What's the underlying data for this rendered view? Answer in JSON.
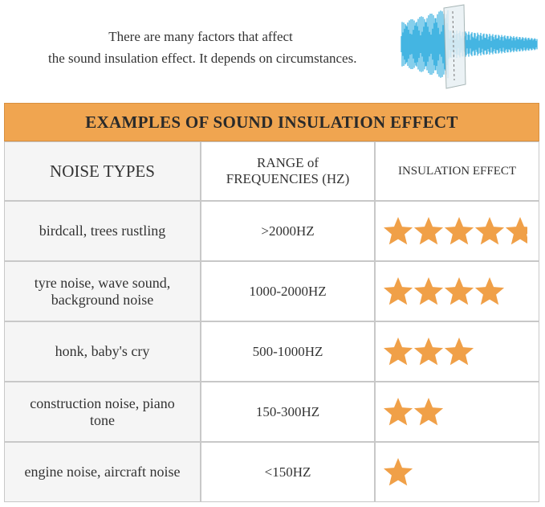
{
  "intro": {
    "lines": [
      "There are many factors that affect",
      "the sound insulation effect. It depends on circumstances."
    ]
  },
  "table": {
    "title": "EXAMPLES OF SOUND INSULATION EFFECT",
    "header": [
      "NOISE TYPES",
      "RANGE of FREQUENCIES (HZ)",
      "INSULATION EFFECT"
    ],
    "rows": [
      {
        "noise": "birdcall, trees rustling",
        "range": ">2000HZ",
        "stars": 5
      },
      {
        "noise": "tyre noise, wave sound, background noise",
        "range": "1000-2000HZ",
        "stars": 4
      },
      {
        "noise": "honk, baby's cry",
        "range": "500-1000HZ",
        "stars": 3
      },
      {
        "noise": "construction noise, piano tone",
        "range": "150-300HZ",
        "stars": 2
      },
      {
        "noise": "engine noise, aircraft noise",
        "range": "<150HZ",
        "stars": 1
      }
    ]
  }
}
